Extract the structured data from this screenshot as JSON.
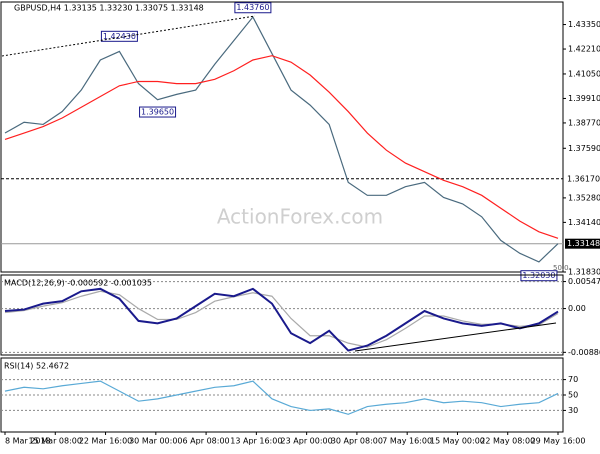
{
  "chart_data": {
    "type": "line",
    "title": "GBPUSD,H4  1.33135 1.33230 1.33075 1.33148",
    "watermark": "ActionForex.com",
    "x_labels": [
      "8 Mar 2018",
      "15 Mar 08:00",
      "22 Mar 16:00",
      "30 Mar 00:00",
      "6 Apr 08:00",
      "13 Apr 16:00",
      "23 Apr 00:00",
      "30 Apr 08:00",
      "7 May 16:00",
      "15 May 00:00",
      "22 May 08:00",
      "29 May 16:00"
    ],
    "panels": [
      {
        "ylim": [
          1.3183,
          1.444
        ],
        "yticks": [
          {
            "value": 1.4335,
            "label": "1.43350"
          },
          {
            "value": 1.4221,
            "label": "1.42210"
          },
          {
            "value": 1.4105,
            "label": "1.41050"
          },
          {
            "value": 1.3991,
            "label": "1.39910"
          },
          {
            "value": 1.3877,
            "label": "1.38770"
          },
          {
            "value": 1.3759,
            "label": "1.37590"
          },
          {
            "value": 1.3528,
            "label": "1.35280"
          },
          {
            "value": 1.3414,
            "label": "1.34140"
          },
          {
            "value": 1.3183,
            "label": "1.31830"
          }
        ],
        "hlines": [
          {
            "value": 1.3617,
            "label": "1.36170",
            "style": "dashed"
          },
          {
            "value": 1.33148,
            "label": "1.33148",
            "style": "solid"
          }
        ],
        "annotations": [
          {
            "index": 6,
            "value": 1.4243,
            "label": "1.42430"
          },
          {
            "index": 13,
            "value": 1.4376,
            "label": "1.43760"
          },
          {
            "index": 8,
            "value": 1.3965,
            "label": "1.39650"
          },
          {
            "index": 28,
            "value": 1.3203,
            "label": "1.32030"
          }
        ],
        "note": "50.0",
        "series": [
          {
            "name": "GBPUSD",
            "color": "#4a6a7e",
            "values": [
              1.383,
              1.388,
              1.387,
              1.393,
              1.403,
              1.417,
              1.421,
              1.406,
              1.3985,
              1.401,
              1.403,
              1.415,
              1.426,
              1.437,
              1.42,
              1.403,
              1.396,
              1.387,
              1.36,
              1.354,
              1.354,
              1.358,
              1.36,
              1.353,
              1.35,
              1.344,
              1.333,
              1.327,
              1.323,
              1.3315
            ]
          },
          {
            "name": "MA",
            "color": "#ff2020",
            "values": [
              1.38,
              1.383,
              1.386,
              1.39,
              1.395,
              1.4,
              1.405,
              1.407,
              1.407,
              1.406,
              1.406,
              1.408,
              1.412,
              1.417,
              1.419,
              1.416,
              1.41,
              1.402,
              1.393,
              1.383,
              1.375,
              1.369,
              1.365,
              1.361,
              1.358,
              1.354,
              1.348,
              1.342,
              1.337,
              1.334
            ]
          }
        ]
      },
      {
        "label": "MACD(12,26,9) -0.000592 -0.001035",
        "ylim": [
          -0.0094,
          0.0068
        ],
        "yticks": [
          0.00547,
          {
            "value": 0,
            "label": "0.00"
          },
          -0.00886
        ],
        "series": [
          {
            "name": "Signal",
            "color": "#aaaaaa",
            "values": [
              -0.0008,
              -0.0004,
              0.0005,
              0.0012,
              0.0025,
              0.0035,
              0.0028,
              0.0,
              -0.0022,
              -0.0022,
              -0.0008,
              0.0015,
              0.0024,
              0.0032,
              0.0025,
              -0.002,
              -0.0055,
              -0.0055,
              -0.007,
              -0.0078,
              -0.0063,
              -0.004,
              -0.0015,
              -0.0015,
              -0.0025,
              -0.0032,
              -0.0031,
              -0.0036,
              -0.0033,
              -0.001
            ]
          },
          {
            "name": "MACD",
            "color": "#1a1a8c",
            "values": [
              -0.0005,
              -0.0002,
              0.001,
              0.0015,
              0.0035,
              0.004,
              0.002,
              -0.0025,
              -0.003,
              -0.002,
              0.0005,
              0.003,
              0.0025,
              0.004,
              0.001,
              -0.005,
              -0.007,
              -0.0045,
              -0.0085,
              -0.0075,
              -0.0055,
              -0.003,
              -0.0005,
              -0.002,
              -0.003,
              -0.0035,
              -0.003,
              -0.004,
              -0.003,
              -0.0006
            ]
          }
        ]
      },
      {
        "label": "RSI(14) 52.4672",
        "ylim": [
          2,
          98
        ],
        "yticks": [
          70,
          50,
          30
        ],
        "series": [
          {
            "name": "RSI",
            "color": "#5aaad6",
            "values": [
              55,
              60,
              58,
              62,
              65,
              68,
              55,
              42,
              45,
              50,
              55,
              60,
              62,
              68,
              45,
              35,
              30,
              32,
              25,
              35,
              38,
              40,
              45,
              40,
              42,
              40,
              35,
              38,
              40,
              52
            ]
          }
        ]
      }
    ]
  }
}
